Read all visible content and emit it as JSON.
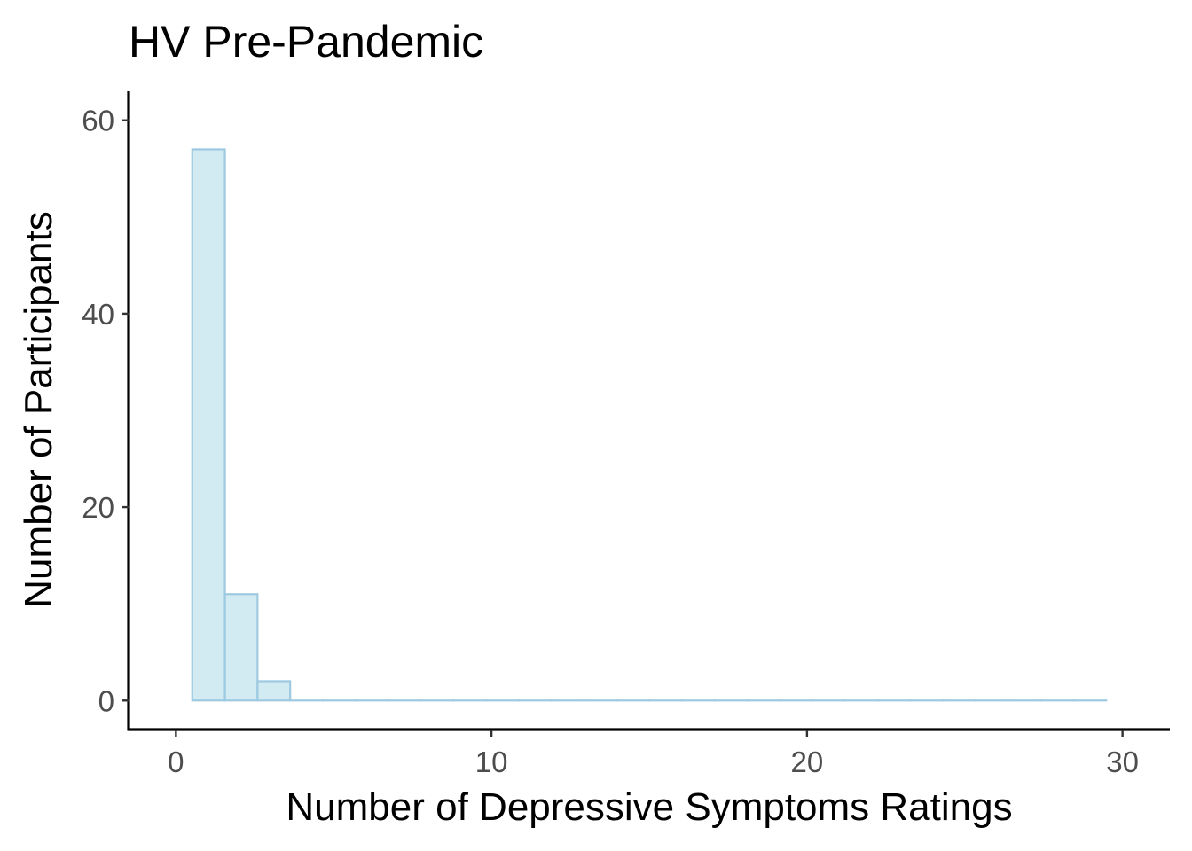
{
  "chart_data": {
    "type": "bar",
    "title": "HV Pre-Pandemic",
    "xlabel": "Number of Depressive Symptoms Ratings",
    "ylabel": "Number of Participants",
    "xlim": [
      -1.5,
      31.5
    ],
    "ylim": [
      -3,
      63
    ],
    "x_ticks": [
      0,
      10,
      20,
      30
    ],
    "x_tick_labels": [
      "0",
      "10",
      "20",
      "30"
    ],
    "y_ticks": [
      0,
      20,
      40,
      60
    ],
    "y_tick_labels": [
      "0",
      "20",
      "40",
      "60"
    ],
    "bin_width": 1.0345,
    "bins_start": 0.517,
    "values": [
      57,
      11,
      2,
      0,
      0,
      0,
      0,
      0,
      0,
      0,
      0,
      0,
      0,
      0,
      0,
      0,
      0,
      0,
      0,
      0,
      0,
      0,
      0,
      0,
      0,
      0,
      0,
      0
    ],
    "grid": false,
    "legend": "none",
    "colors": {
      "bar_fill": "#add8e6",
      "bar_fill_opacity": 0.55,
      "bar_outline": "#9ecae1"
    }
  }
}
